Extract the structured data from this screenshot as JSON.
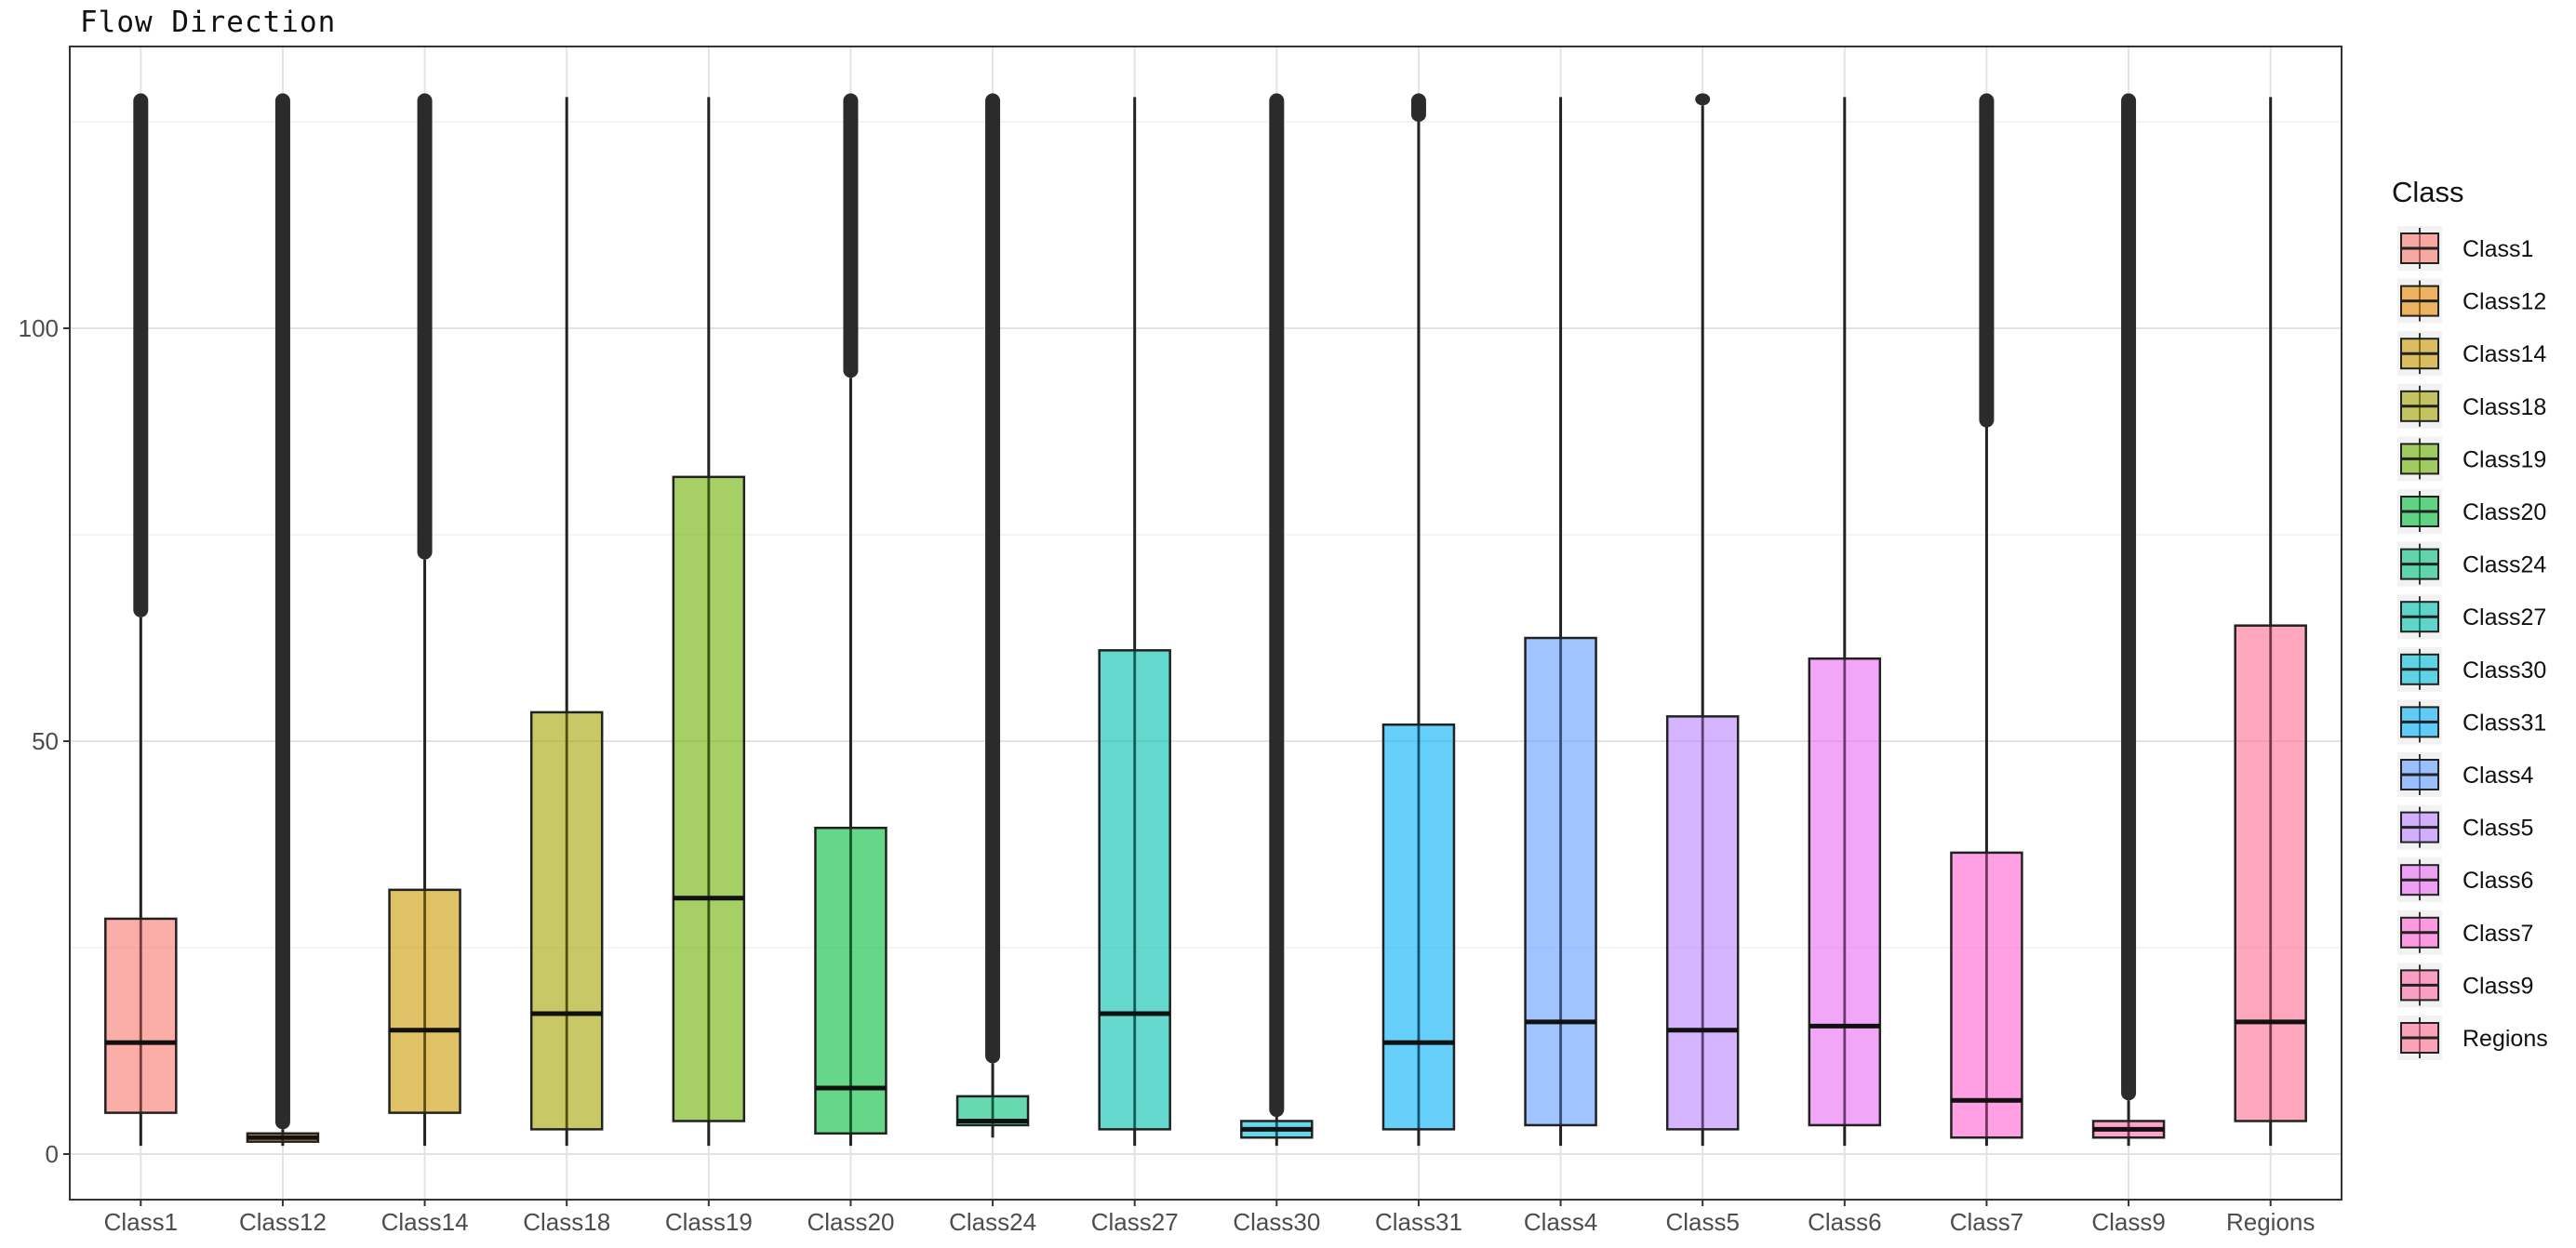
{
  "title": "Flow Direction",
  "chart_data": {
    "type": "boxplot",
    "title": "Flow Direction",
    "xlabel": "",
    "ylabel": "",
    "ylim": [
      -7,
      128
    ],
    "y_ticks": [
      0,
      50,
      100
    ],
    "y_tick_labels": [
      "0",
      "50",
      "100"
    ],
    "grid": true,
    "legend_title": "Class",
    "legend_position": "right",
    "categories": [
      "Class1",
      "Class12",
      "Class14",
      "Class18",
      "Class19",
      "Class20",
      "Class24",
      "Class27",
      "Class30",
      "Class31",
      "Class4",
      "Class5",
      "Class6",
      "Class7",
      "Class9",
      "Regions"
    ],
    "series": [
      {
        "name": "Class1",
        "color": "#F8766D",
        "min": 1,
        "q1": 5,
        "median": 13.5,
        "q3": 28.5,
        "max": 65,
        "outlier_from": 65,
        "outlier_to": 128
      },
      {
        "name": "Class12",
        "color": "#EA8331",
        "min": 1,
        "q1": 1.5,
        "median": 2,
        "q3": 2.5,
        "max": 3,
        "outlier_from": 3,
        "outlier_to": 128
      },
      {
        "name": "Class14",
        "color": "#D89000",
        "min": 1,
        "q1": 5,
        "median": 15,
        "q3": 32,
        "max": 72,
        "outlier_from": 72,
        "outlier_to": 128
      },
      {
        "name": "Class18",
        "color": "#C09B00",
        "min": 1,
        "q1": 3,
        "median": 17,
        "q3": 53.5,
        "max": 128,
        "outlier_from": null,
        "outlier_to": null
      },
      {
        "name": "Class19",
        "color": "#A3A500",
        "min": 1,
        "q1": 4,
        "median": 31,
        "q3": 82,
        "max": 128,
        "outlier_from": null,
        "outlier_to": null
      },
      {
        "name": "Class20",
        "color": "#7CAE00",
        "min": 1,
        "q1": 2.5,
        "median": 8,
        "q3": 39.5,
        "max": 94,
        "outlier_from": 94,
        "outlier_to": 128
      },
      {
        "name": "Class24",
        "color": "#39B600",
        "min": 2,
        "q1": 3.5,
        "median": 4,
        "q3": 7,
        "max": 11,
        "outlier_from": 11,
        "outlier_to": 128
      },
      {
        "name": "Class27",
        "color": "#00BB4E",
        "min": 1,
        "q1": 3,
        "median": 17,
        "q3": 61,
        "max": 128,
        "outlier_from": null,
        "outlier_to": null
      },
      {
        "name": "Class30",
        "color": "#00BF7D",
        "min": 1,
        "q1": 2,
        "median": 3,
        "q3": 4,
        "max": 4.5,
        "outlier_from": 4.5,
        "outlier_to": 128
      },
      {
        "name": "Class31",
        "color": "#00C1A3",
        "min": 1,
        "q1": 3,
        "median": 13.5,
        "q3": 52,
        "max": 125,
        "outlier_from": 125,
        "outlier_to": 128
      },
      {
        "name": "Class4",
        "color": "#00BFC4",
        "min": 1,
        "q1": 3.5,
        "median": 16,
        "q3": 62.5,
        "max": 128,
        "outlier_from": null,
        "outlier_to": null
      },
      {
        "name": "Class5",
        "color": "#00BAE0",
        "min": 1,
        "q1": 3,
        "median": 15,
        "q3": 53,
        "max": 127,
        "outlier_from": 127,
        "outlier_to": 128
      },
      {
        "name": "Class6",
        "color": "#00B0F6",
        "min": 1,
        "q1": 3.5,
        "median": 15.5,
        "q3": 60,
        "max": 128,
        "outlier_from": null,
        "outlier_to": null
      },
      {
        "name": "Class7",
        "color": "#35A2FF",
        "min": 1,
        "q1": 2,
        "median": 6.5,
        "q3": 36.5,
        "max": 88,
        "outlier_from": 88,
        "outlier_to": 128
      },
      {
        "name": "Class9",
        "color": "#9590FF",
        "min": 1,
        "q1": 2,
        "median": 3,
        "q3": 4,
        "max": 6.5,
        "outlier_from": 6.5,
        "outlier_to": 128
      },
      {
        "name": "Regions",
        "color": "#FF6C91",
        "min": 1,
        "q1": 4,
        "median": 16,
        "q3": 64,
        "max": 128,
        "outlier_from": null,
        "outlier_to": null
      }
    ],
    "legend_colors": [
      "#F8766D",
      "#E58700",
      "#C99800",
      "#A3A500",
      "#6BB100",
      "#00BA38",
      "#00BF7D",
      "#00C0AF",
      "#00BCD8",
      "#00B0F6",
      "#619CFF",
      "#B983FF",
      "#E76BF3",
      "#FD61D1",
      "#FF67A4",
      "#FF6C91"
    ],
    "display_colors": [
      "#F8766D",
      "#E58700",
      "#C99800",
      "#A3A500",
      "#6BB100",
      "#00BA38",
      "#00BF7D",
      "#00C0AF",
      "#00BCD8",
      "#00B0F6",
      "#619CFF",
      "#B983FF",
      "#E76BF3",
      "#FD61D1",
      "#FF67A4",
      "#FF6C91"
    ],
    "fill_opacity": 0.6
  }
}
